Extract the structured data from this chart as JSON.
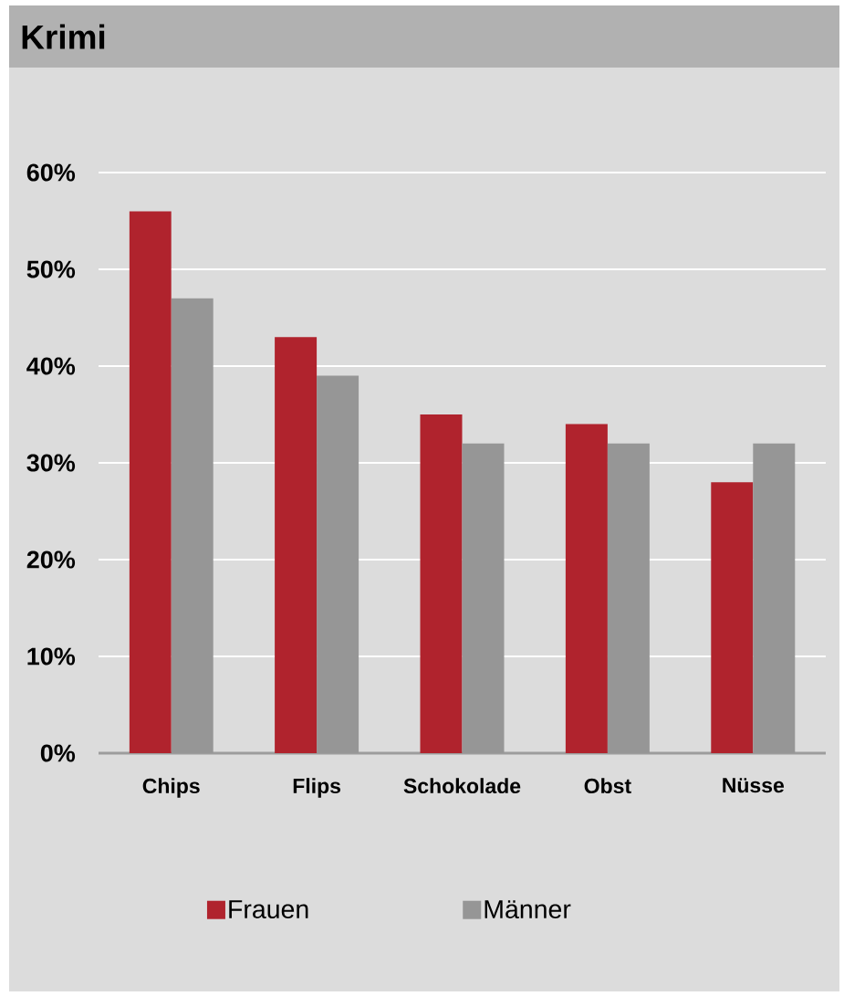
{
  "chart_data": {
    "type": "bar",
    "title": "Krimi",
    "categories": [
      "Chips",
      "Flips",
      "Schokolade",
      "Obst",
      "Nüsse"
    ],
    "series": [
      {
        "name": "Frauen",
        "color": "#b0232d",
        "values": [
          56,
          43,
          35,
          34,
          28
        ]
      },
      {
        "name": "Männer",
        "color": "#969696",
        "values": [
          47,
          39,
          32,
          32,
          32
        ]
      }
    ],
    "ylim": [
      0,
      60
    ],
    "yticks": [
      {
        "value": 0,
        "label": "0%"
      },
      {
        "value": 10,
        "label": "10%"
      },
      {
        "value": 20,
        "label": "20%"
      },
      {
        "value": 30,
        "label": "30%"
      },
      {
        "value": 40,
        "label": "40%"
      },
      {
        "value": 50,
        "label": "50%"
      },
      {
        "value": 60,
        "label": "60%"
      }
    ],
    "grid": "y",
    "legend": "bottom"
  }
}
